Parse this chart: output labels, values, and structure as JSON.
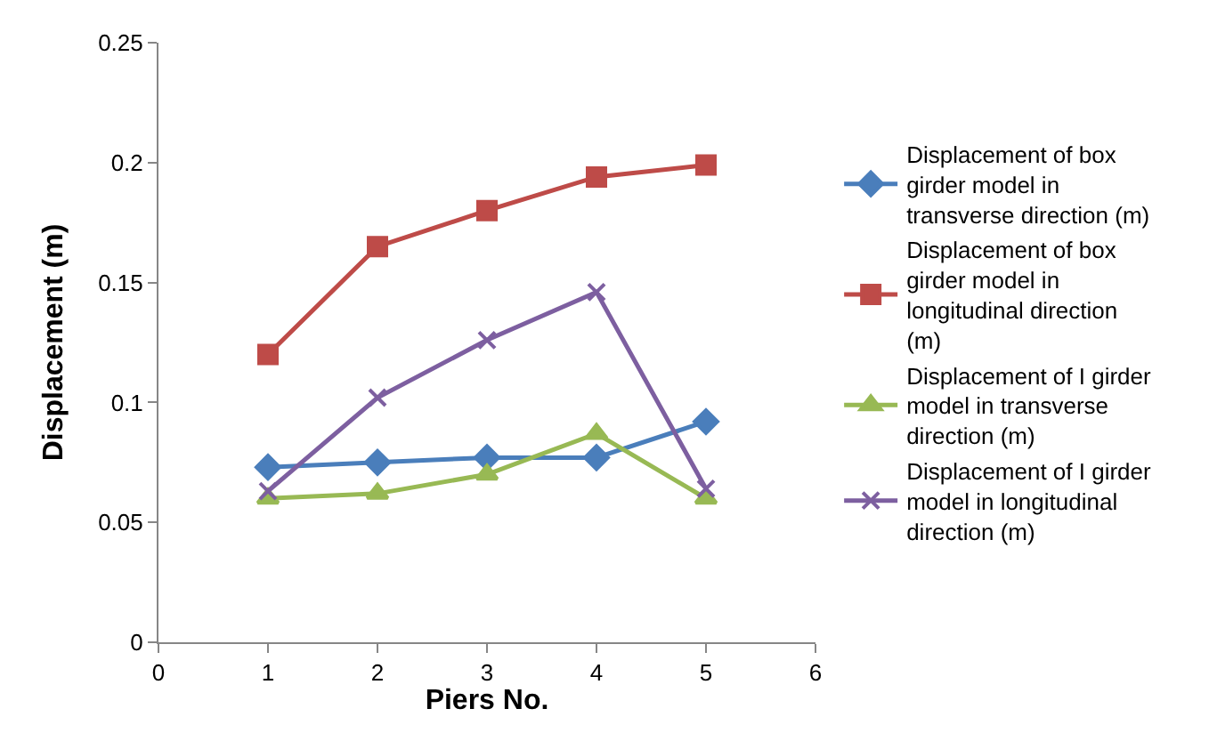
{
  "chart_data": {
    "type": "line",
    "xlabel": "Piers No.",
    "ylabel": "Displacement (m)",
    "xlim": [
      0,
      6
    ],
    "xticks": [
      0,
      1,
      2,
      3,
      4,
      5,
      6
    ],
    "ylim": [
      0,
      0.25
    ],
    "yticks": [
      0,
      0.05,
      0.1,
      0.15,
      0.2,
      0.25
    ],
    "grid": false,
    "legend": "right",
    "series": [
      {
        "name": "Displacement of box girder model in transverse direction (m)",
        "color": "#4a7ebb",
        "marker": "diamond",
        "x": [
          1,
          2,
          3,
          4,
          5
        ],
        "values": [
          0.073,
          0.075,
          0.077,
          0.077,
          0.092
        ]
      },
      {
        "name": "Displacement of box girder model in longitudinal direction (m)",
        "color": "#be4b48",
        "marker": "square",
        "x": [
          1,
          2,
          3,
          4,
          5
        ],
        "values": [
          0.12,
          0.165,
          0.18,
          0.194,
          0.199
        ]
      },
      {
        "name": "Displacement of I girder model in transverse  direction (m)",
        "color": "#98b954",
        "marker": "triangle",
        "x": [
          1,
          2,
          3,
          4,
          5
        ],
        "values": [
          0.06,
          0.062,
          0.07,
          0.087,
          0.06
        ]
      },
      {
        "name": "Displacement of I girder model in longitudinal direction (m)",
        "color": "#7d5fa0",
        "marker": "cross",
        "x": [
          1,
          2,
          3,
          4,
          5
        ],
        "values": [
          0.063,
          0.102,
          0.126,
          0.146,
          0.064
        ]
      }
    ]
  }
}
